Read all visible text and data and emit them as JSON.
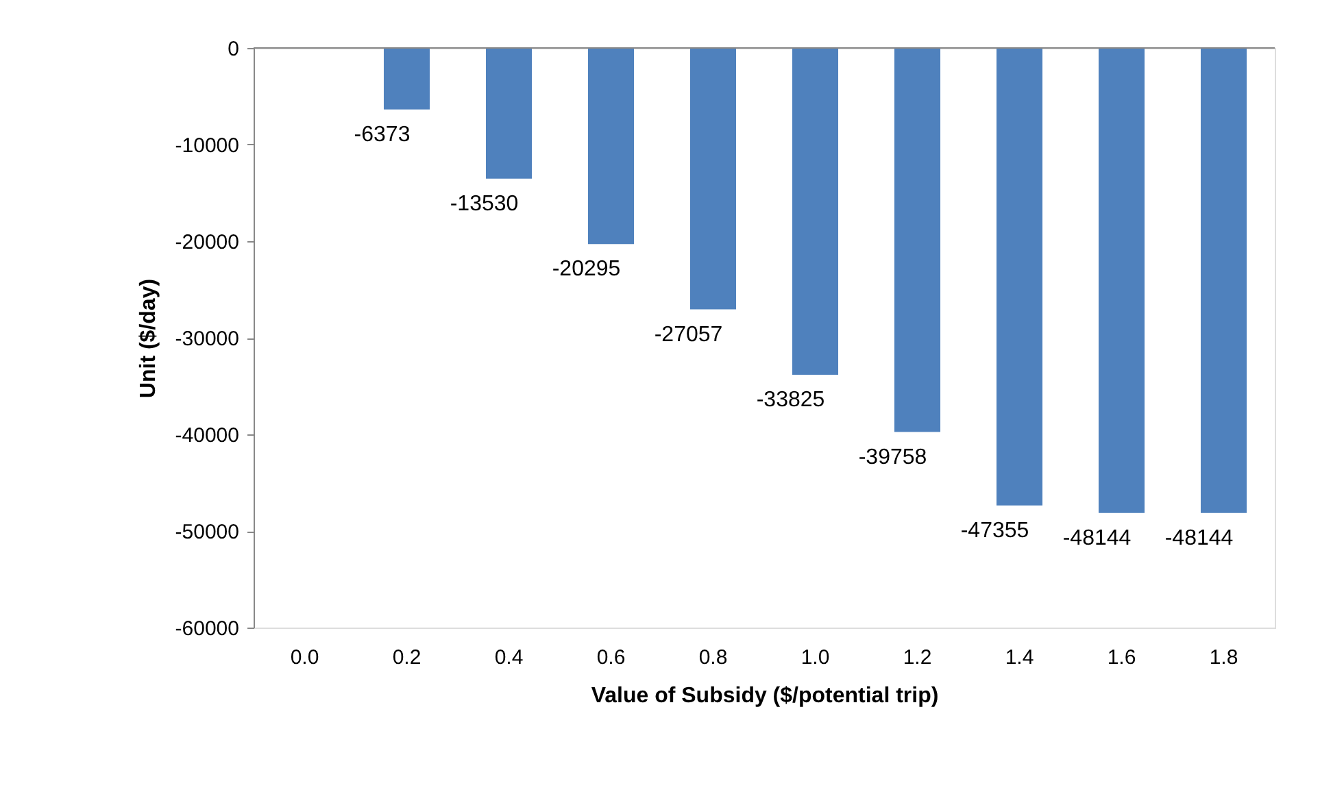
{
  "chart_data": {
    "type": "bar",
    "xlabel": "Value of Subsidy ($/potential trip)",
    "ylabel": "Unit ($/day)",
    "categories": [
      "0.0",
      "0.2",
      "0.4",
      "0.6",
      "0.8",
      "1.0",
      "1.2",
      "1.4",
      "1.6",
      "1.8"
    ],
    "values": [
      0,
      -6373,
      -13530,
      -20295,
      -27057,
      -33825,
      -39758,
      -47355,
      -48144,
      -48144
    ],
    "value_labels": [
      null,
      "-6373",
      "-13530",
      "-20295",
      "-27057",
      "-33825",
      "-39758",
      "-47355",
      "-48144",
      "-48144"
    ],
    "color": "#4f81bd",
    "ylim": [
      -60000,
      0
    ],
    "yticks": [
      0,
      -10000,
      -20000,
      -30000,
      -40000,
      -50000,
      -60000
    ],
    "grid": false,
    "ref_lines": [
      {
        "axis": "y",
        "value": 0,
        "color": "#888888"
      }
    ]
  }
}
